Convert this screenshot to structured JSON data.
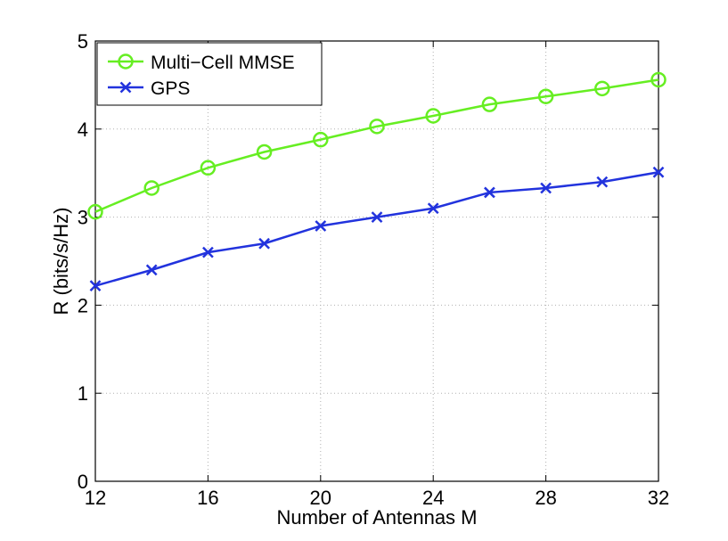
{
  "chart_data": {
    "type": "line",
    "title": "",
    "xlabel": "Number of Antennas M",
    "ylabel": "R (bits/s/Hz)",
    "xlim": [
      12,
      32
    ],
    "ylim": [
      0,
      5
    ],
    "xticks": [
      12,
      16,
      20,
      24,
      28,
      32
    ],
    "yticks": [
      0,
      1,
      2,
      3,
      4,
      5
    ],
    "grid": true,
    "legend_position": "top-left",
    "x": [
      12,
      14,
      16,
      18,
      20,
      22,
      24,
      26,
      28,
      30,
      32
    ],
    "series": [
      {
        "name": "Multi−Cell MMSE",
        "marker": "circle",
        "color": "#66ee22",
        "values": [
          3.06,
          3.33,
          3.56,
          3.74,
          3.88,
          4.03,
          4.15,
          4.28,
          4.37,
          4.46,
          4.56
        ]
      },
      {
        "name": "GPS",
        "marker": "x",
        "color": "#2233dd",
        "values": [
          2.22,
          2.4,
          2.6,
          2.7,
          2.9,
          3.0,
          3.1,
          3.28,
          3.33,
          3.4,
          3.51
        ]
      }
    ]
  }
}
